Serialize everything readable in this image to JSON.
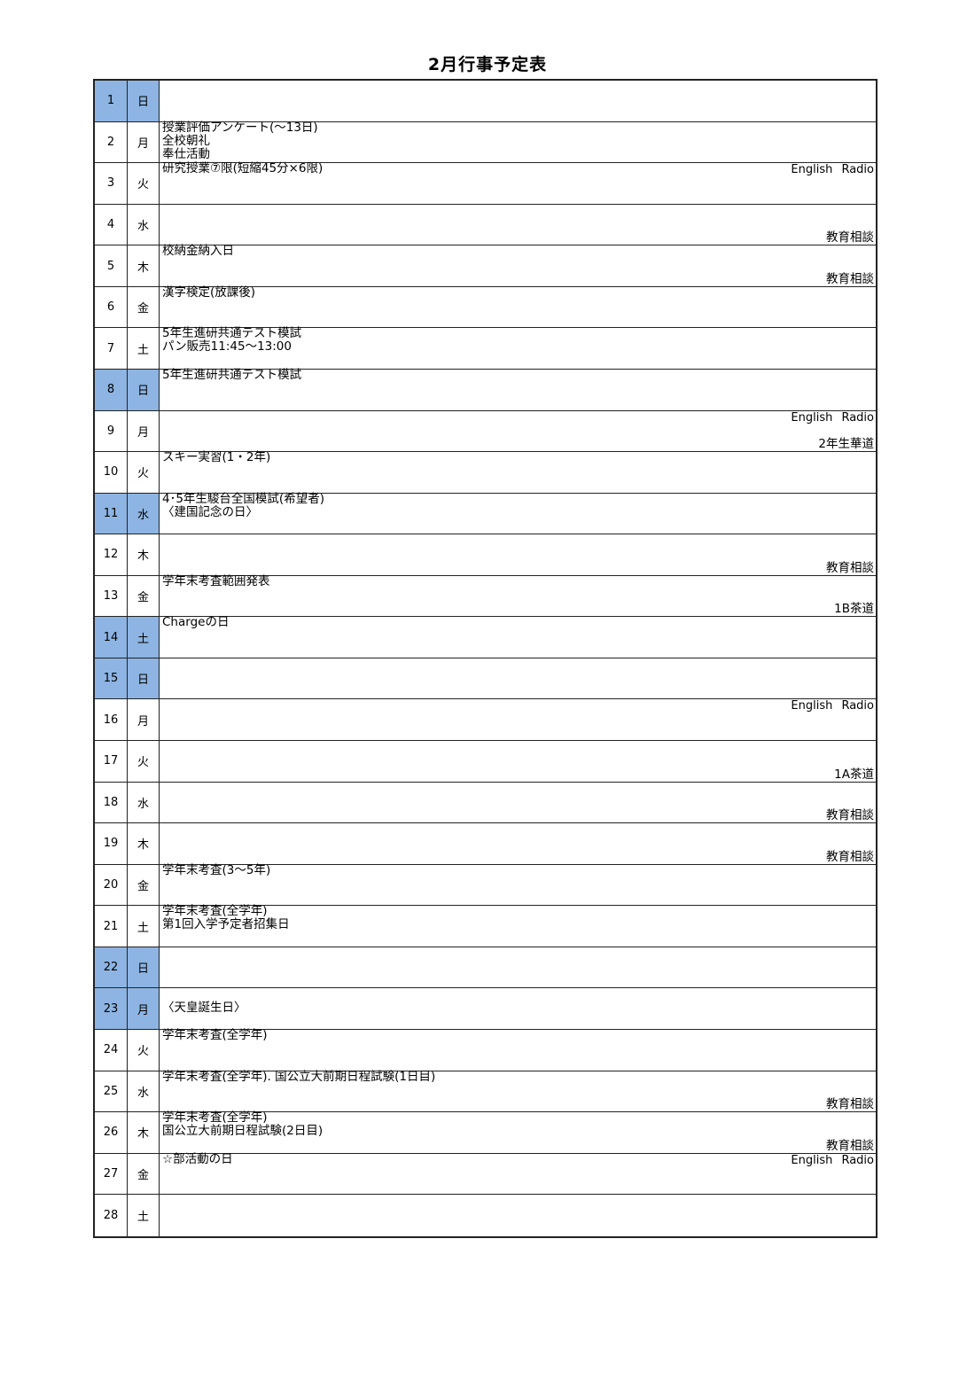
{
  "title": "2月行事予定表",
  "colors": {
    "holiday_cell": "#8db4e2",
    "border": "#222222"
  },
  "rows": [
    {
      "day": "1",
      "weekday": "日",
      "holiday": true,
      "events": [],
      "right_top": "",
      "right_bottom": ""
    },
    {
      "day": "2",
      "weekday": "月",
      "holiday": false,
      "events": [
        "授業評価アンケート(～13日)",
        "全校朝礼",
        "奉仕活動"
      ],
      "right_top": "",
      "right_bottom": ""
    },
    {
      "day": "3",
      "weekday": "火",
      "holiday": false,
      "events": [
        "研究授業⑦限(短縮45分×6限)"
      ],
      "right_top": "English Radio",
      "right_bottom": ""
    },
    {
      "day": "4",
      "weekday": "水",
      "holiday": false,
      "events": [],
      "right_top": "",
      "right_bottom": "教育相談"
    },
    {
      "day": "5",
      "weekday": "木",
      "holiday": false,
      "events": [
        "校納金納入日"
      ],
      "right_top": "",
      "right_bottom": "教育相談"
    },
    {
      "day": "6",
      "weekday": "金",
      "holiday": false,
      "events": [
        "漢字検定(放課後)"
      ],
      "right_top": "",
      "right_bottom": ""
    },
    {
      "day": "7",
      "weekday": "土",
      "holiday": false,
      "events": [
        "5年生進研共通テスト模試",
        "パン販売11:45～13:00"
      ],
      "right_top": "",
      "right_bottom": ""
    },
    {
      "day": "8",
      "weekday": "日",
      "holiday": true,
      "events": [
        "5年生進研共通テスト模試"
      ],
      "right_top": "",
      "right_bottom": ""
    },
    {
      "day": "9",
      "weekday": "月",
      "holiday": false,
      "events": [],
      "right_top": "English Radio",
      "right_bottom": "2年生華道"
    },
    {
      "day": "10",
      "weekday": "火",
      "holiday": false,
      "events": [
        "スキー実習(1・2年)"
      ],
      "right_top": "",
      "right_bottom": ""
    },
    {
      "day": "11",
      "weekday": "水",
      "holiday": true,
      "events": [
        "4･5年生駿台全国模試(希望者)",
        "〈建国記念の日〉"
      ],
      "right_top": "",
      "right_bottom": ""
    },
    {
      "day": "12",
      "weekday": "木",
      "holiday": false,
      "events": [],
      "right_top": "",
      "right_bottom": "教育相談"
    },
    {
      "day": "13",
      "weekday": "金",
      "holiday": false,
      "events": [
        "学年末考査範囲発表"
      ],
      "right_top": "",
      "right_bottom": "1B茶道"
    },
    {
      "day": "14",
      "weekday": "土",
      "holiday": true,
      "events": [
        "Chargeの日"
      ],
      "right_top": "",
      "right_bottom": ""
    },
    {
      "day": "15",
      "weekday": "日",
      "holiday": true,
      "events": [],
      "right_top": "",
      "right_bottom": ""
    },
    {
      "day": "16",
      "weekday": "月",
      "holiday": false,
      "events": [],
      "right_top": "English Radio",
      "right_bottom": ""
    },
    {
      "day": "17",
      "weekday": "火",
      "holiday": false,
      "events": [],
      "right_top": "",
      "right_bottom": "1A茶道"
    },
    {
      "day": "18",
      "weekday": "水",
      "holiday": false,
      "events": [],
      "right_top": "",
      "right_bottom": "教育相談"
    },
    {
      "day": "19",
      "weekday": "木",
      "holiday": false,
      "events": [],
      "right_top": "",
      "right_bottom": "教育相談"
    },
    {
      "day": "20",
      "weekday": "金",
      "holiday": false,
      "events": [
        "学年末考査(3～5年)"
      ],
      "right_top": "",
      "right_bottom": ""
    },
    {
      "day": "21",
      "weekday": "土",
      "holiday": false,
      "events": [
        "学年末考査(全学年)",
        "第1回入学予定者招集日"
      ],
      "right_top": "",
      "right_bottom": ""
    },
    {
      "day": "22",
      "weekday": "日",
      "holiday": true,
      "events": [],
      "right_top": "",
      "right_bottom": ""
    },
    {
      "day": "23",
      "weekday": "月",
      "holiday": true,
      "events": [
        "〈天皇誕生日〉"
      ],
      "events_centered": true,
      "right_top": "",
      "right_bottom": ""
    },
    {
      "day": "24",
      "weekday": "火",
      "holiday": false,
      "events": [
        "学年末考査(全学年)"
      ],
      "right_top": "",
      "right_bottom": ""
    },
    {
      "day": "25",
      "weekday": "水",
      "holiday": false,
      "events": [
        "学年末考査(全学年). 国公立大前期日程試験(1日目)"
      ],
      "right_top": "",
      "right_bottom": "教育相談"
    },
    {
      "day": "26",
      "weekday": "木",
      "holiday": false,
      "events": [
        "学年末考査(全学年)",
        "国公立大前期日程試験(2日目)"
      ],
      "right_top": "",
      "right_bottom": "教育相談"
    },
    {
      "day": "27",
      "weekday": "金",
      "holiday": false,
      "events": [
        "☆部活動の日"
      ],
      "right_top": "English Radio",
      "right_bottom": ""
    },
    {
      "day": "28",
      "weekday": "土",
      "holiday": false,
      "events": [],
      "right_top": "",
      "right_bottom": ""
    }
  ]
}
